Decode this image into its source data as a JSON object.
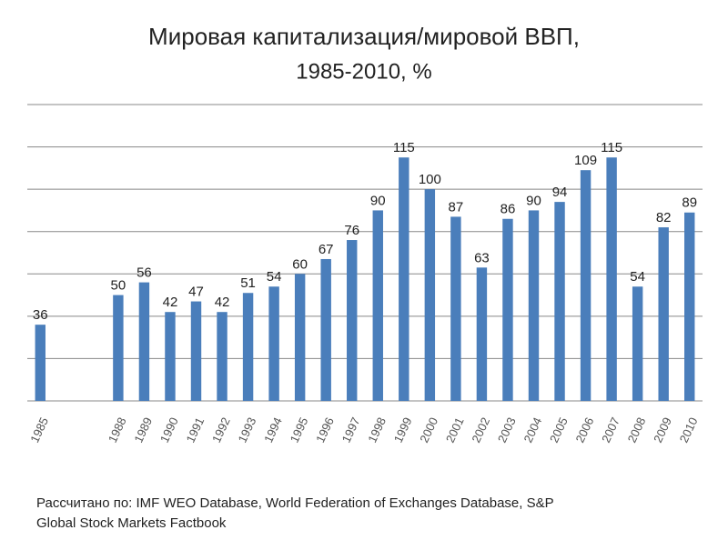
{
  "chart_data": {
    "type": "bar",
    "title": [
      "Мировая капитализация/мировой ВВП,",
      "1985-2010, %"
    ],
    "categories": [
      "1985",
      null,
      null,
      "1988",
      "1989",
      "1990",
      "1991",
      "1992",
      "1993",
      "1994",
      "1995",
      "1996",
      "1997",
      "1998",
      "1999",
      "2000",
      "2001",
      "2002",
      "2003",
      "2004",
      "2005",
      "2006",
      "2007",
      "2008",
      "2009",
      "2010"
    ],
    "values": [
      36,
      null,
      null,
      50,
      56,
      42,
      47,
      42,
      51,
      54,
      60,
      67,
      76,
      90,
      115,
      100,
      87,
      63,
      86,
      90,
      94,
      109,
      115,
      54,
      82,
      89
    ],
    "color": "#4a7ebb",
    "ylim": [
      0,
      140
    ],
    "yticks": [
      0,
      20,
      40,
      60,
      80,
      100,
      120,
      140
    ],
    "grid": true,
    "source": [
      "Рассчитано по: IMF WEO Database, World Federation of Exchanges Database,  S&P",
      "Global Stock Markets Factbook"
    ]
  }
}
